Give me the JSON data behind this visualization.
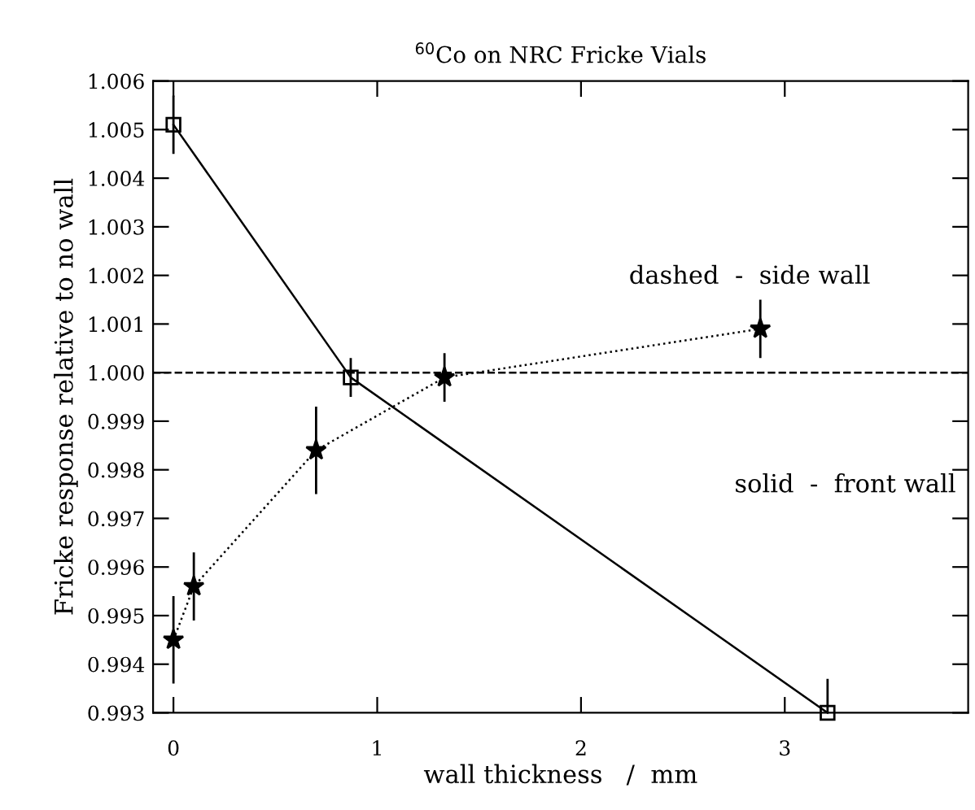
{
  "chart_data": {
    "type": "line",
    "title": "$^{60}$Co on NRC Fricke Vials",
    "xlabel": "wall thickness   /  mm",
    "ylabel": "Fricke response relative to no wall",
    "annotations": [
      "dashed  -  side wall",
      "solid  -  front wall"
    ],
    "xlim": [
      -0.1,
      3.9
    ],
    "xticks": [
      0,
      1,
      2,
      3
    ],
    "ylim": [
      0.993,
      1.006
    ],
    "yticks": [
      {
        "value": 1.006,
        "label": "1.006"
      },
      {
        "value": 1.005,
        "label": "1.005"
      },
      {
        "value": 1.004,
        "label": "1.004"
      },
      {
        "value": 1.003,
        "label": "1.003"
      },
      {
        "value": 1.002,
        "label": "1.002"
      },
      {
        "value": 1.001,
        "label": "1.001"
      },
      {
        "value": 1.0,
        "label": "1.000"
      },
      {
        "value": 0.999,
        "label": "0.999"
      },
      {
        "value": 0.998,
        "label": "0.998"
      },
      {
        "value": 0.997,
        "label": "0.997"
      },
      {
        "value": 0.996,
        "label": "0.996"
      },
      {
        "value": 0.995,
        "label": "0.995"
      },
      {
        "value": 0.994,
        "label": "0.994"
      },
      {
        "value": 0.993,
        "label": "0.993"
      }
    ],
    "grid": false,
    "legend": false,
    "series": [
      {
        "color": "#000000",
        "marker": "square",
        "line_style": "solid",
        "x": [
          0,
          0.87,
          3.21
        ],
        "values": [
          1.0051,
          0.9999,
          0.993
        ],
        "errors": [
          0.0006,
          0.0004,
          [
            0.993,
            0.9937
          ]
        ]
      },
      {
        "color": "#000000",
        "marker": "star",
        "line_style": "dotted",
        "x": [
          0,
          0.1,
          0.7,
          1.33,
          2.88
        ],
        "values": [
          0.9945,
          0.9956,
          0.9984,
          0.9999,
          1.0009
        ],
        "errors": [
          0.0009,
          0.0007,
          0.0009,
          0.0005,
          0.0006
        ]
      }
    ],
    "ref_lines": [
      {
        "axis": "y",
        "value": 1.0,
        "label": null,
        "line_style": "dashed",
        "color": "#000000"
      }
    ]
  }
}
